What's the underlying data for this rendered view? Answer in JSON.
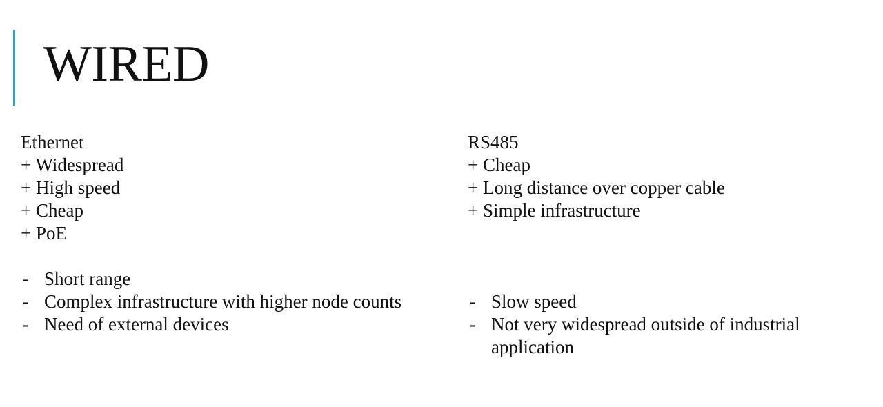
{
  "slide": {
    "title": "WIRED",
    "accent_color": "#2aa4d5"
  },
  "columns": {
    "left": {
      "heading": "Ethernet",
      "pros": [
        "+ Widespread",
        "+ High speed",
        "+ Cheap",
        "+ PoE"
      ],
      "cons": [
        "Short range",
        "Complex infrastructure with higher node counts",
        "Need of external devices"
      ]
    },
    "right": {
      "heading": "RS485",
      "pros": [
        "+ Cheap",
        "+ Long distance over copper cable",
        "+ Simple infrastructure"
      ],
      "cons": [
        "Slow speed",
        "Not very widespread outside of industrial application"
      ]
    }
  },
  "bullet_glyph": "-"
}
